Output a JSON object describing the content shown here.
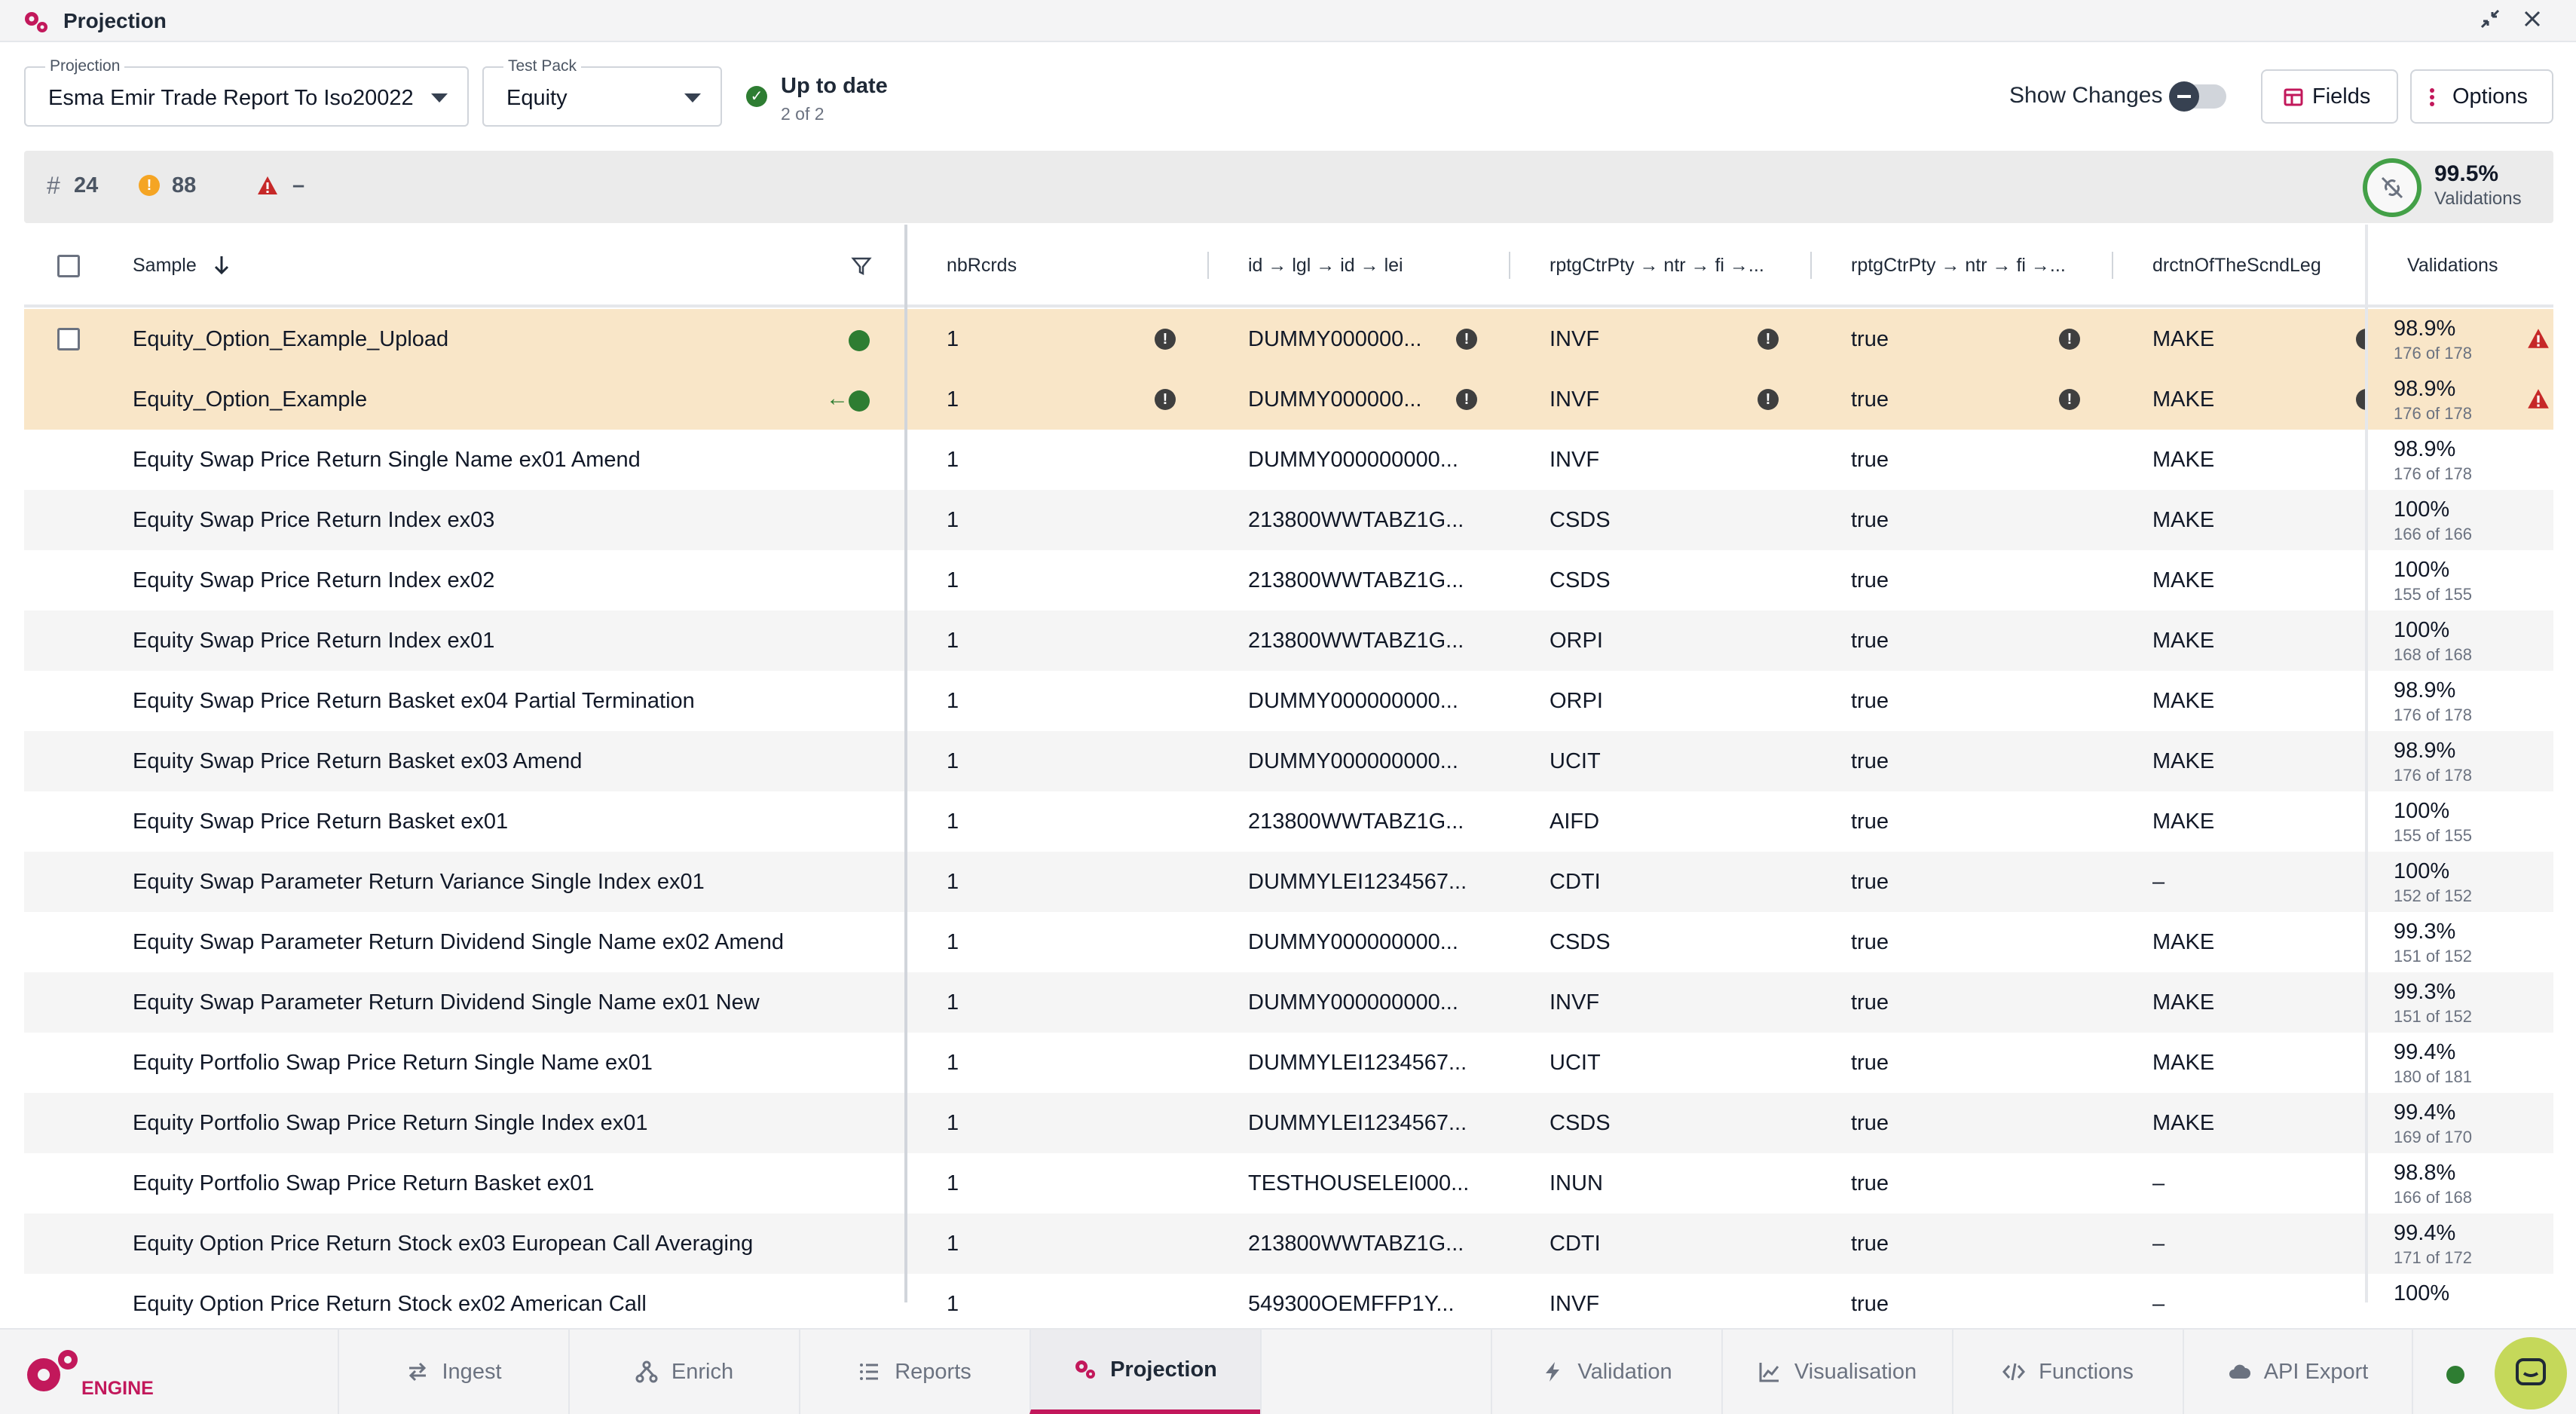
{
  "window": {
    "title": "Projection"
  },
  "toolbar": {
    "projection_label": "Projection",
    "projection_value": "Esma Emir Trade Report To Iso20022",
    "testpack_label": "Test Pack",
    "testpack_value": "Equity",
    "status_title": "Up to date",
    "status_sub": "2 of 2",
    "show_changes_label": "Show Changes",
    "show_changes_on": false,
    "fields_label": "Fields",
    "options_label": "Options"
  },
  "summary": {
    "count": "24",
    "warnings": "88",
    "errors": "–",
    "validation_pct": "99.5%",
    "validation_label": "Validations"
  },
  "table": {
    "headers": {
      "sample": "Sample",
      "nbRcrds": "nbRcrds",
      "id": "id → lgl → id → lei",
      "rptg1": "rptgCtrPty → ntr → fi →...",
      "rptg2": "rptgCtrPty → ntr → fi →...",
      "drctn": "drctnOfTheScndLeg",
      "validations": "Validations"
    },
    "rows": [
      {
        "sample": "Equity_Option_Example_Upload",
        "nb": "1",
        "id": "DUMMY000000...",
        "r1": "INVF",
        "r2": "true",
        "dr": "MAKE",
        "vp": "98.9%",
        "vs": "176 of 178"
      },
      {
        "sample": "Equity_Option_Example",
        "nb": "1",
        "id": "DUMMY000000...",
        "r1": "INVF",
        "r2": "true",
        "dr": "MAKE",
        "vp": "98.9%",
        "vs": "176 of 178"
      },
      {
        "sample": "Equity Swap Price Return Single Name ex01 Amend",
        "nb": "1",
        "id": "DUMMY000000000...",
        "r1": "INVF",
        "r2": "true",
        "dr": "MAKE",
        "vp": "98.9%",
        "vs": "176 of 178"
      },
      {
        "sample": "Equity Swap Price Return Index ex03",
        "nb": "1",
        "id": "213800WWTABZ1G...",
        "r1": "CSDS",
        "r2": "true",
        "dr": "MAKE",
        "vp": "100%",
        "vs": "166 of 166"
      },
      {
        "sample": "Equity Swap Price Return Index ex02",
        "nb": "1",
        "id": "213800WWTABZ1G...",
        "r1": "CSDS",
        "r2": "true",
        "dr": "MAKE",
        "vp": "100%",
        "vs": "155 of 155"
      },
      {
        "sample": "Equity Swap Price Return Index ex01",
        "nb": "1",
        "id": "213800WWTABZ1G...",
        "r1": "ORPI",
        "r2": "true",
        "dr": "MAKE",
        "vp": "100%",
        "vs": "168 of 168"
      },
      {
        "sample": "Equity Swap Price Return Basket ex04 Partial Termination",
        "nb": "1",
        "id": "DUMMY000000000...",
        "r1": "ORPI",
        "r2": "true",
        "dr": "MAKE",
        "vp": "98.9%",
        "vs": "176 of 178"
      },
      {
        "sample": "Equity Swap Price Return Basket ex03 Amend",
        "nb": "1",
        "id": "DUMMY000000000...",
        "r1": "UCIT",
        "r2": "true",
        "dr": "MAKE",
        "vp": "98.9%",
        "vs": "176 of 178"
      },
      {
        "sample": "Equity Swap Price Return Basket ex01",
        "nb": "1",
        "id": "213800WWTABZ1G...",
        "r1": "AIFD",
        "r2": "true",
        "dr": "MAKE",
        "vp": "100%",
        "vs": "155 of 155"
      },
      {
        "sample": "Equity Swap Parameter Return Variance Single Index ex01",
        "nb": "1",
        "id": "DUMMYLEI1234567...",
        "r1": "CDTI",
        "r2": "true",
        "dr": "–",
        "vp": "100%",
        "vs": "152 of 152"
      },
      {
        "sample": "Equity Swap Parameter Return Dividend Single Name ex02 Amend",
        "nb": "1",
        "id": "DUMMY000000000...",
        "r1": "CSDS",
        "r2": "true",
        "dr": "MAKE",
        "vp": "99.3%",
        "vs": "151 of 152"
      },
      {
        "sample": "Equity Swap Parameter Return Dividend Single Name ex01 New",
        "nb": "1",
        "id": "DUMMY000000000...",
        "r1": "INVF",
        "r2": "true",
        "dr": "MAKE",
        "vp": "99.3%",
        "vs": "151 of 152"
      },
      {
        "sample": "Equity Portfolio Swap Price Return Single Name ex01",
        "nb": "1",
        "id": "DUMMYLEI1234567...",
        "r1": "UCIT",
        "r2": "true",
        "dr": "MAKE",
        "vp": "99.4%",
        "vs": "180 of 181"
      },
      {
        "sample": "Equity Portfolio Swap Price Return Single Index ex01",
        "nb": "1",
        "id": "DUMMYLEI1234567...",
        "r1": "CSDS",
        "r2": "true",
        "dr": "MAKE",
        "vp": "99.4%",
        "vs": "169 of 170"
      },
      {
        "sample": "Equity Portfolio Swap Price Return Basket ex01",
        "nb": "1",
        "id": "TESTHOUSELEI000...",
        "r1": "INUN",
        "r2": "true",
        "dr": "–",
        "vp": "98.8%",
        "vs": "166 of 168"
      },
      {
        "sample": "Equity Option Price Return Stock ex03 European Call Averaging",
        "nb": "1",
        "id": "213800WWTABZ1G...",
        "r1": "CDTI",
        "r2": "true",
        "dr": "–",
        "vp": "99.4%",
        "vs": "171 of 172"
      },
      {
        "sample": "Equity Option Price Return Stock ex02 American Call",
        "nb": "1",
        "id": "549300OEMFFP1Y...",
        "r1": "INVF",
        "r2": "true",
        "dr": "–",
        "vp": "100%",
        "vs": ""
      }
    ]
  },
  "nav": {
    "brand": "ENGINE",
    "tabs": [
      {
        "label": "Ingest"
      },
      {
        "label": "Enrich"
      },
      {
        "label": "Reports"
      },
      {
        "label": "Projection"
      },
      {
        "label": "Validation"
      },
      {
        "label": "Visualisation"
      },
      {
        "label": "Functions"
      },
      {
        "label": "API Export"
      }
    ]
  },
  "colors": {
    "accent": "#c2185b",
    "highlight_row": "#f9e6c8",
    "success": "#2e7d32",
    "warning": "#f5a524",
    "error": "#c62828"
  },
  "icons": {
    "title": "gears-icon",
    "minimize": "collapse-arrows-icon",
    "close": "close-icon",
    "status": "check-circle-icon",
    "fields": "columns-icon",
    "options": "kebab-menu-icon",
    "filter": "filter-icon",
    "sort": "arrow-down-icon",
    "chat": "chat-bubble-icon"
  }
}
